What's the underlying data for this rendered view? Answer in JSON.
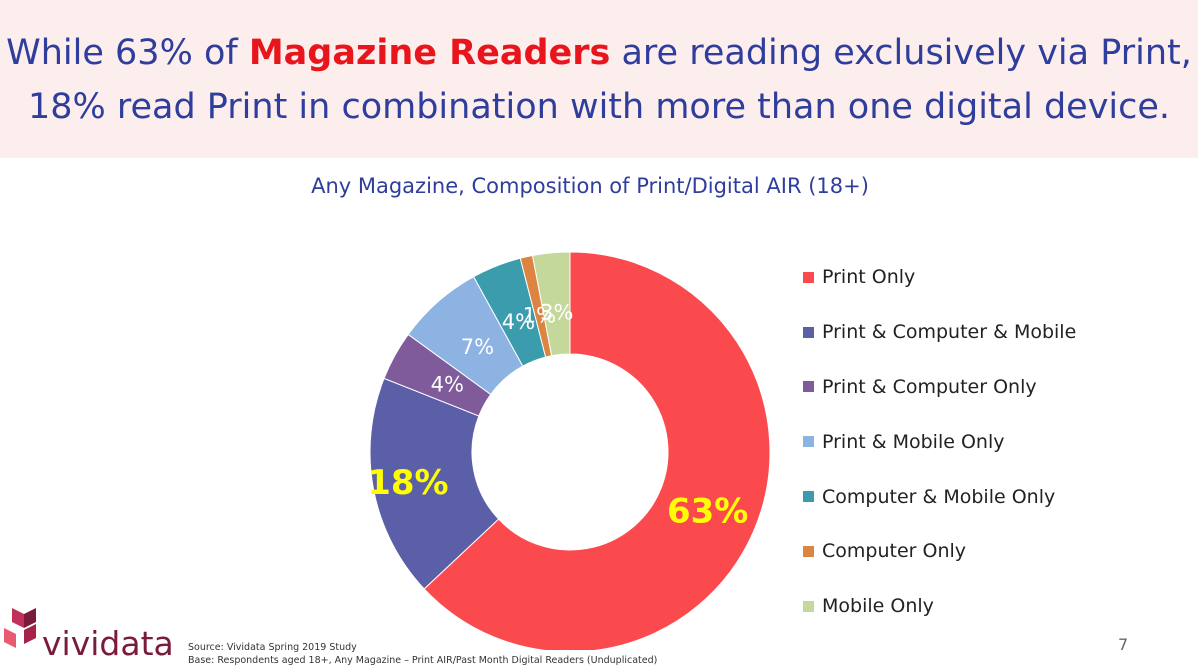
{
  "headline": {
    "part1": "While 63% of ",
    "highlight": "Magazine Readers",
    "part2": " are reading exclusively via Print,",
    "line2": "18% read Print in combination with more than one digital device."
  },
  "chart_data": {
    "type": "pie",
    "title": "Any Magazine, Composition of Print/Digital AIR (18+)",
    "categories": [
      "Print Only",
      "Print & Computer & Mobile",
      "Print & Computer Only",
      "Print & Mobile Only",
      "Computer & Mobile Only",
      "Computer Only",
      "Mobile Only"
    ],
    "values": [
      63,
      18,
      4,
      7,
      4,
      1,
      3
    ],
    "data_labels": [
      "63%",
      "18%",
      "4%",
      "7%",
      "4%",
      "1%",
      "3%"
    ],
    "colors": [
      "#fb4a4e",
      "#5a5fa8",
      "#7f5b9b",
      "#8db3e2",
      "#3b9cad",
      "#dc8540",
      "#c4d89b"
    ],
    "label_colors": [
      "#ffff00",
      "#ffff00",
      "#ffffff",
      "#ffffff",
      "#ffffff",
      "#ffffff",
      "#ffffff"
    ],
    "legend_position": "right",
    "hole": "donut"
  },
  "footer": {
    "logo": "vividata",
    "source": "Source: Vividata Spring 2019 Study",
    "base": "Base: Respondents aged 18+, Any Magazine – Print AIR/Past Month Digital Readers (Unduplicated)",
    "page_number": "7"
  }
}
